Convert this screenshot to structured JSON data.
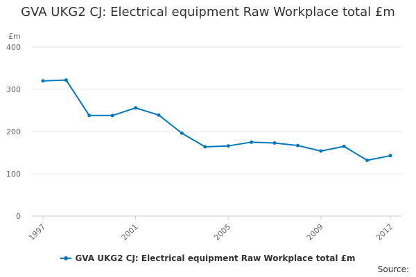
{
  "chart_data": {
    "type": "line",
    "title": "GVA UKG2 CJ: Electrical equipment Raw Workplace total £m",
    "ylabel": "£m",
    "xlabel": "",
    "x": [
      1997,
      1998,
      1999,
      2000,
      2001,
      2002,
      2003,
      2004,
      2005,
      2006,
      2007,
      2008,
      2009,
      2010,
      2011,
      2012
    ],
    "series": [
      {
        "name": "GVA UKG2 CJ: Electrical equipment Raw Workplace total £m",
        "values": [
          320,
          322,
          238,
          238,
          256,
          239,
          196,
          164,
          166,
          175,
          173,
          167,
          154,
          165,
          132,
          143
        ]
      }
    ],
    "xticks": [
      "1997",
      "2001",
      "2005",
      "2009",
      "2012"
    ],
    "yticks": [
      "0",
      "100",
      "200",
      "300",
      "400"
    ],
    "ylim": [
      0,
      400
    ],
    "grid": true,
    "legend": "bottom",
    "color": "#0077bc"
  },
  "source_label": "Source:"
}
